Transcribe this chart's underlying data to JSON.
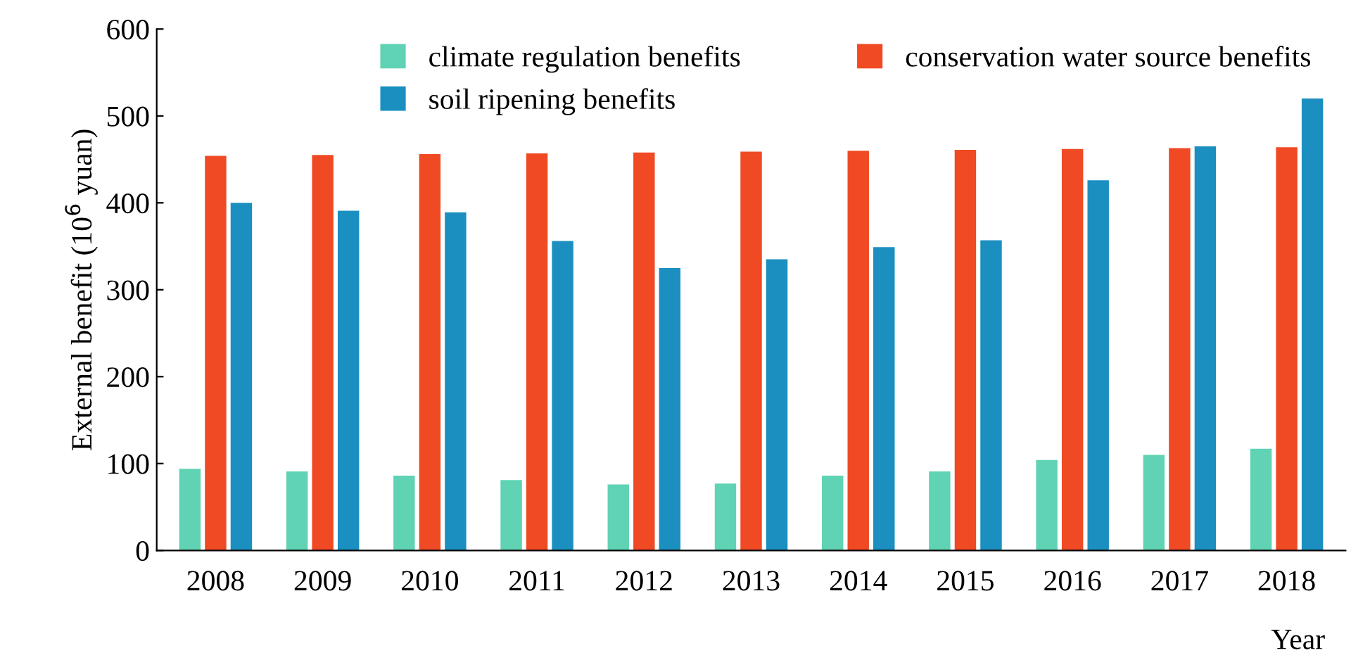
{
  "chart_data": {
    "type": "bar",
    "xlabel": "Year",
    "ylabel": "External benefit (10$^{6}$ yuan)",
    "categories": [
      "2008",
      "2009",
      "2010",
      "2011",
      "2012",
      "2013",
      "2014",
      "2015",
      "2016",
      "2017",
      "2018"
    ],
    "series": [
      {
        "name": "climate regulation benefits",
        "color": "#5fd3b3",
        "values": [
          94,
          91,
          86,
          81,
          76,
          77,
          86,
          91,
          104,
          110,
          117
        ]
      },
      {
        "name": "conservation water source benefits",
        "color": "#f04a24",
        "values": [
          454,
          455,
          456,
          457,
          458,
          459,
          460,
          461,
          462,
          463,
          464
        ]
      },
      {
        "name": "soil ripening benefits",
        "color": "#1a8fc0",
        "values": [
          400,
          391,
          389,
          356,
          325,
          335,
          349,
          357,
          426,
          465,
          520
        ]
      }
    ],
    "ylim": [
      0,
      600
    ],
    "yticks": [
      0,
      100,
      200,
      300,
      400,
      500,
      600
    ],
    "grid": false,
    "legend": "top"
  }
}
